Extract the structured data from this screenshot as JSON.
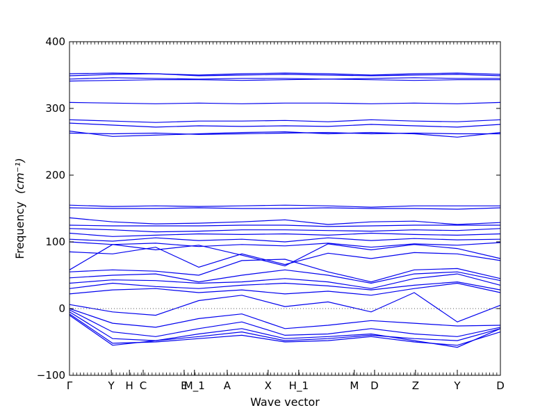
{
  "chart_data": {
    "type": "line",
    "xlabel": "Wave vector",
    "ylabel": "Frequency",
    "ylabel_unit": "(cm⁻¹)",
    "ylim": [
      -100,
      400
    ],
    "yticks": [
      -100,
      0,
      100,
      200,
      300,
      400
    ],
    "xlim": [
      0,
      1
    ],
    "high_symmetry_points": [
      {
        "label": "Γ",
        "x": 0.0
      },
      {
        "label": "Y",
        "x": 0.097
      },
      {
        "label": "H",
        "x": 0.139
      },
      {
        "label": "C",
        "x": 0.171
      },
      {
        "label": "E",
        "x": 0.266
      },
      {
        "label": "M_1",
        "x": 0.29
      },
      {
        "label": "A",
        "x": 0.366
      },
      {
        "label": "X",
        "x": 0.461
      },
      {
        "label": "H_1",
        "x": 0.532
      },
      {
        "label": "M",
        "x": 0.661
      },
      {
        "label": "D",
        "x": 0.708
      },
      {
        "label": "Z",
        "x": 0.803
      },
      {
        "label": "Y",
        "x": 0.9
      },
      {
        "label": "D",
        "x": 1.0
      }
    ],
    "zero_line": 0,
    "line_color": "#0000ee",
    "grid": false,
    "series": [
      {
        "x": [
          0,
          0.1,
          0.2,
          0.3,
          0.4,
          0.5,
          0.6,
          0.7,
          0.8,
          0.9,
          1.0
        ],
        "y": [
          352,
          353,
          352,
          350,
          352,
          353,
          352,
          350,
          352,
          353,
          351
        ]
      },
      {
        "x": [
          0,
          0.1,
          0.2,
          0.3,
          0.4,
          0.5,
          0.6,
          0.7,
          0.8,
          0.9,
          1.0
        ],
        "y": [
          349,
          351,
          352,
          349,
          350,
          351,
          350,
          349,
          350,
          351,
          349
        ]
      },
      {
        "x": [
          0,
          0.1,
          0.2,
          0.3,
          0.4,
          0.5,
          0.6,
          0.7,
          0.8,
          0.9,
          1.0
        ],
        "y": [
          344,
          346,
          345,
          344,
          345,
          345,
          344,
          345,
          346,
          345,
          345
        ]
      },
      {
        "x": [
          0,
          0.1,
          0.2,
          0.3,
          0.4,
          0.5,
          0.6,
          0.7,
          0.8,
          0.9,
          1.0
        ],
        "y": [
          341,
          342,
          343,
          343,
          342,
          343,
          344,
          343,
          342,
          343,
          343
        ]
      },
      {
        "x": [
          0,
          0.1,
          0.2,
          0.3,
          0.4,
          0.5,
          0.6,
          0.7,
          0.8,
          0.9,
          1.0
        ],
        "y": [
          309,
          308,
          307,
          308,
          307,
          308,
          308,
          307,
          308,
          307,
          309
        ]
      },
      {
        "x": [
          0,
          0.1,
          0.2,
          0.3,
          0.4,
          0.5,
          0.6,
          0.7,
          0.8,
          0.9,
          1.0
        ],
        "y": [
          283,
          281,
          279,
          281,
          281,
          282,
          280,
          283,
          281,
          280,
          283
        ]
      },
      {
        "x": [
          0,
          0.1,
          0.2,
          0.3,
          0.4,
          0.5,
          0.6,
          0.7,
          0.8,
          0.9,
          1.0
        ],
        "y": [
          278,
          275,
          272,
          274,
          273,
          274,
          273,
          276,
          274,
          272,
          276
        ]
      },
      {
        "x": [
          0,
          0.1,
          0.2,
          0.3,
          0.4,
          0.5,
          0.6,
          0.7,
          0.8,
          0.9,
          1.0
        ],
        "y": [
          266,
          258,
          260,
          262,
          264,
          265,
          262,
          264,
          262,
          257,
          264
        ]
      },
      {
        "x": [
          0,
          0.1,
          0.2,
          0.3,
          0.4,
          0.5,
          0.6,
          0.7,
          0.8,
          0.9,
          1.0
        ],
        "y": [
          263,
          262,
          263,
          261,
          262,
          263,
          264,
          262,
          263,
          262,
          262
        ]
      },
      {
        "x": [
          0,
          0.1,
          0.2,
          0.3,
          0.4,
          0.5,
          0.6,
          0.7,
          0.8,
          0.9,
          1.0
        ],
        "y": [
          155,
          153,
          154,
          153,
          154,
          155,
          154,
          152,
          154,
          154,
          154
        ]
      },
      {
        "x": [
          0,
          0.1,
          0.2,
          0.3,
          0.4,
          0.5,
          0.6,
          0.7,
          0.8,
          0.9,
          1.0
        ],
        "y": [
          151,
          150,
          150,
          151,
          150,
          150,
          151,
          150,
          150,
          149,
          151
        ]
      },
      {
        "x": [
          0,
          0.1,
          0.2,
          0.3,
          0.4,
          0.5,
          0.6,
          0.7,
          0.8,
          0.9,
          1.0
        ],
        "y": [
          136,
          130,
          127,
          128,
          130,
          133,
          126,
          130,
          131,
          126,
          129
        ]
      },
      {
        "x": [
          0,
          0.1,
          0.2,
          0.3,
          0.4,
          0.5,
          0.6,
          0.7,
          0.8,
          0.9,
          1.0
        ],
        "y": [
          125,
          124,
          124,
          124,
          125,
          125,
          123,
          124,
          125,
          125,
          125
        ]
      },
      {
        "x": [
          0,
          0.1,
          0.2,
          0.3,
          0.4,
          0.5,
          0.6,
          0.7,
          0.8,
          0.9,
          1.0
        ],
        "y": [
          120,
          118,
          115,
          116,
          118,
          118,
          117,
          116,
          118,
          117,
          120
        ]
      },
      {
        "x": [
          0,
          0.1,
          0.2,
          0.3,
          0.4,
          0.5,
          0.6,
          0.7,
          0.8,
          0.9,
          1.0
        ],
        "y": [
          113,
          108,
          110,
          112,
          111,
          112,
          110,
          113,
          111,
          110,
          112
        ]
      },
      {
        "x": [
          0,
          0.1,
          0.2,
          0.3,
          0.4,
          0.5,
          0.6,
          0.7,
          0.8,
          0.9,
          1.0
        ],
        "y": [
          104,
          101,
          106,
          102,
          104,
          100,
          106,
          102,
          105,
          103,
          104
        ]
      },
      {
        "x": [
          0,
          0.1,
          0.2,
          0.3,
          0.4,
          0.5,
          0.6,
          0.7,
          0.8,
          0.9,
          1.0
        ],
        "y": [
          100,
          96,
          98,
          93,
          96,
          94,
          98,
          92,
          97,
          95,
          99
        ]
      },
      {
        "x": [
          0,
          0.1,
          0.2,
          0.3,
          0.4,
          0.5,
          0.6,
          0.7,
          0.8,
          0.9,
          1.0
        ],
        "y": [
          58,
          96,
          88,
          95,
          80,
          64,
          97,
          88,
          96,
          90,
          75
        ]
      },
      {
        "x": [
          0,
          0.1,
          0.2,
          0.3,
          0.4,
          0.5,
          0.6,
          0.7,
          0.8,
          0.9,
          1.0
        ],
        "y": [
          85,
          82,
          92,
          62,
          82,
          66,
          83,
          75,
          84,
          82,
          72
        ]
      },
      {
        "x": [
          0,
          0.1,
          0.2,
          0.3,
          0.4,
          0.5,
          0.6,
          0.7,
          0.8,
          0.9,
          1.0
        ],
        "y": [
          55,
          58,
          56,
          50,
          72,
          74,
          55,
          40,
          58,
          60,
          45
        ]
      },
      {
        "x": [
          0,
          0.1,
          0.2,
          0.3,
          0.4,
          0.5,
          0.6,
          0.7,
          0.8,
          0.9,
          1.0
        ],
        "y": [
          46,
          50,
          52,
          40,
          50,
          58,
          50,
          38,
          52,
          55,
          42
        ]
      },
      {
        "x": [
          0,
          0.1,
          0.2,
          0.3,
          0.4,
          0.5,
          0.6,
          0.7,
          0.8,
          0.9,
          1.0
        ],
        "y": [
          38,
          43,
          42,
          38,
          40,
          45,
          40,
          30,
          45,
          52,
          35
        ]
      },
      {
        "x": [
          0,
          0.1,
          0.2,
          0.3,
          0.4,
          0.5,
          0.6,
          0.7,
          0.8,
          0.9,
          1.0
        ],
        "y": [
          30,
          38,
          33,
          30,
          35,
          38,
          34,
          28,
          35,
          40,
          28
        ]
      },
      {
        "x": [
          0,
          0.1,
          0.2,
          0.3,
          0.4,
          0.5,
          0.6,
          0.7,
          0.8,
          0.9,
          1.0
        ],
        "y": [
          22,
          28,
          30,
          24,
          28,
          22,
          26,
          20,
          30,
          38,
          24
        ]
      },
      {
        "x": [
          0,
          0.1,
          0.2,
          0.3,
          0.4,
          0.5,
          0.6,
          0.7,
          0.8,
          0.9,
          1.0
        ],
        "y": [
          6,
          -5,
          -10,
          12,
          20,
          3,
          10,
          -5,
          24,
          -20,
          5
        ]
      },
      {
        "x": [
          0,
          0.1,
          0.2,
          0.3,
          0.4,
          0.5,
          0.6,
          0.7,
          0.8,
          0.9,
          1.0
        ],
        "y": [
          0,
          -22,
          -28,
          -15,
          -8,
          -30,
          -25,
          -18,
          -22,
          -26,
          -25
        ]
      },
      {
        "x": [
          0,
          0.1,
          0.2,
          0.3,
          0.4,
          0.5,
          0.6,
          0.7,
          0.8,
          0.9,
          1.0
        ],
        "y": [
          -2,
          -35,
          -42,
          -30,
          -20,
          -40,
          -38,
          -30,
          -38,
          -42,
          -28
        ]
      },
      {
        "x": [
          0,
          0.1,
          0.2,
          0.3,
          0.4,
          0.5,
          0.6,
          0.7,
          0.8,
          0.9,
          1.0
        ],
        "y": [
          -5,
          -45,
          -48,
          -42,
          -35,
          -48,
          -45,
          -40,
          -45,
          -48,
          -30
        ]
      },
      {
        "x": [
          0,
          0.1,
          0.2,
          0.3,
          0.4,
          0.5,
          0.6,
          0.7,
          0.8,
          0.9,
          1.0
        ],
        "y": [
          -8,
          -52,
          -50,
          -45,
          -40,
          -50,
          -48,
          -42,
          -50,
          -55,
          -35
        ]
      },
      {
        "x": [
          0,
          0.1,
          0.2,
          0.3,
          0.4,
          0.5,
          0.6,
          0.7,
          0.8,
          0.9,
          1.0
        ],
        "y": [
          -10,
          -55,
          -48,
          -38,
          -30,
          -45,
          -42,
          -38,
          -48,
          -58,
          -30
        ]
      }
    ]
  }
}
